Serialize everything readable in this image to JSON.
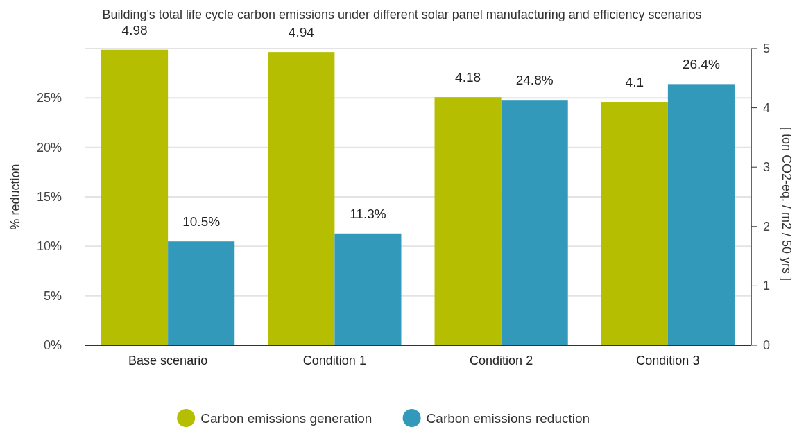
{
  "chart_data": {
    "type": "bar",
    "title": "Building's total life cycle carbon emissions under different solar panel manufacturing and efficiency scenarios",
    "ylabel": "% reduction",
    "y2label": "[ ton CO2-eq. / m2 / 50 yrs ]",
    "categories": [
      "Base scenario",
      "Condition 1",
      "Condition 2",
      "Condition 3"
    ],
    "series": [
      {
        "name": "Carbon emissions generation",
        "color": "#b5be00",
        "axis": "y2",
        "values": [
          4.98,
          4.94,
          4.18,
          4.1
        ],
        "value_labels": [
          "4.98",
          "4.94",
          "4.18",
          "4.1"
        ]
      },
      {
        "name": "Carbon emissions reduction",
        "color": "#3399bb",
        "axis": "y",
        "values": [
          10.5,
          11.3,
          24.8,
          26.4
        ],
        "value_labels": [
          "10.5%",
          "11.3%",
          "24.8%",
          "26.4%"
        ]
      }
    ],
    "ylim": [
      0,
      30
    ],
    "yticks": [
      {
        "value": 0,
        "label": "0%"
      },
      {
        "value": 5,
        "label": "5%"
      },
      {
        "value": 10,
        "label": "10%"
      },
      {
        "value": 15,
        "label": "15%"
      },
      {
        "value": 20,
        "label": "20%"
      },
      {
        "value": 25,
        "label": "25%"
      }
    ],
    "y2lim": [
      0,
      5
    ],
    "y2ticks": [
      0,
      1,
      2,
      3,
      4,
      5
    ],
    "grid": "y",
    "legend": "bottom"
  }
}
